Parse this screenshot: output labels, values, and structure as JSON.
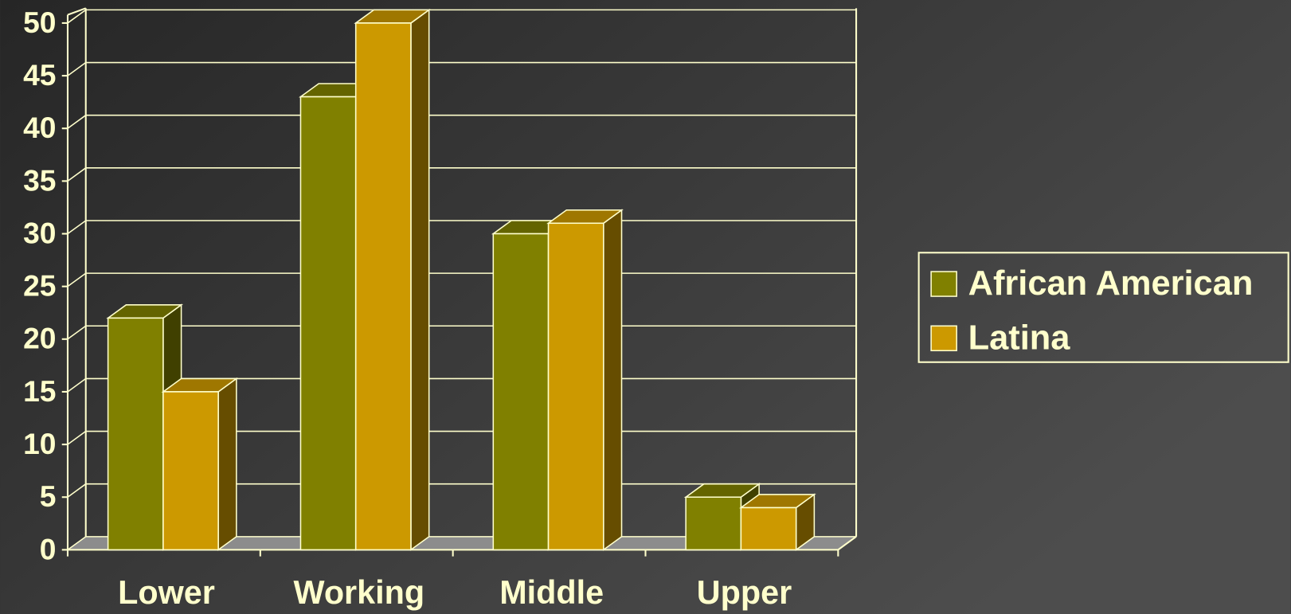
{
  "chart_data": {
    "type": "bar3d",
    "categories": [
      "Lower",
      "Working",
      "Middle",
      "Upper"
    ],
    "series": [
      {
        "name": "African American",
        "color": "#808000",
        "values": [
          22,
          43,
          30,
          5
        ]
      },
      {
        "name": "Latina",
        "color": "#cc9900",
        "values": [
          15,
          50,
          31,
          4
        ]
      }
    ],
    "ylim": [
      0,
      50
    ],
    "yticks": [
      0,
      5,
      10,
      15,
      20,
      25,
      30,
      35,
      40,
      45,
      50
    ],
    "grid": true,
    "legend": "right"
  }
}
